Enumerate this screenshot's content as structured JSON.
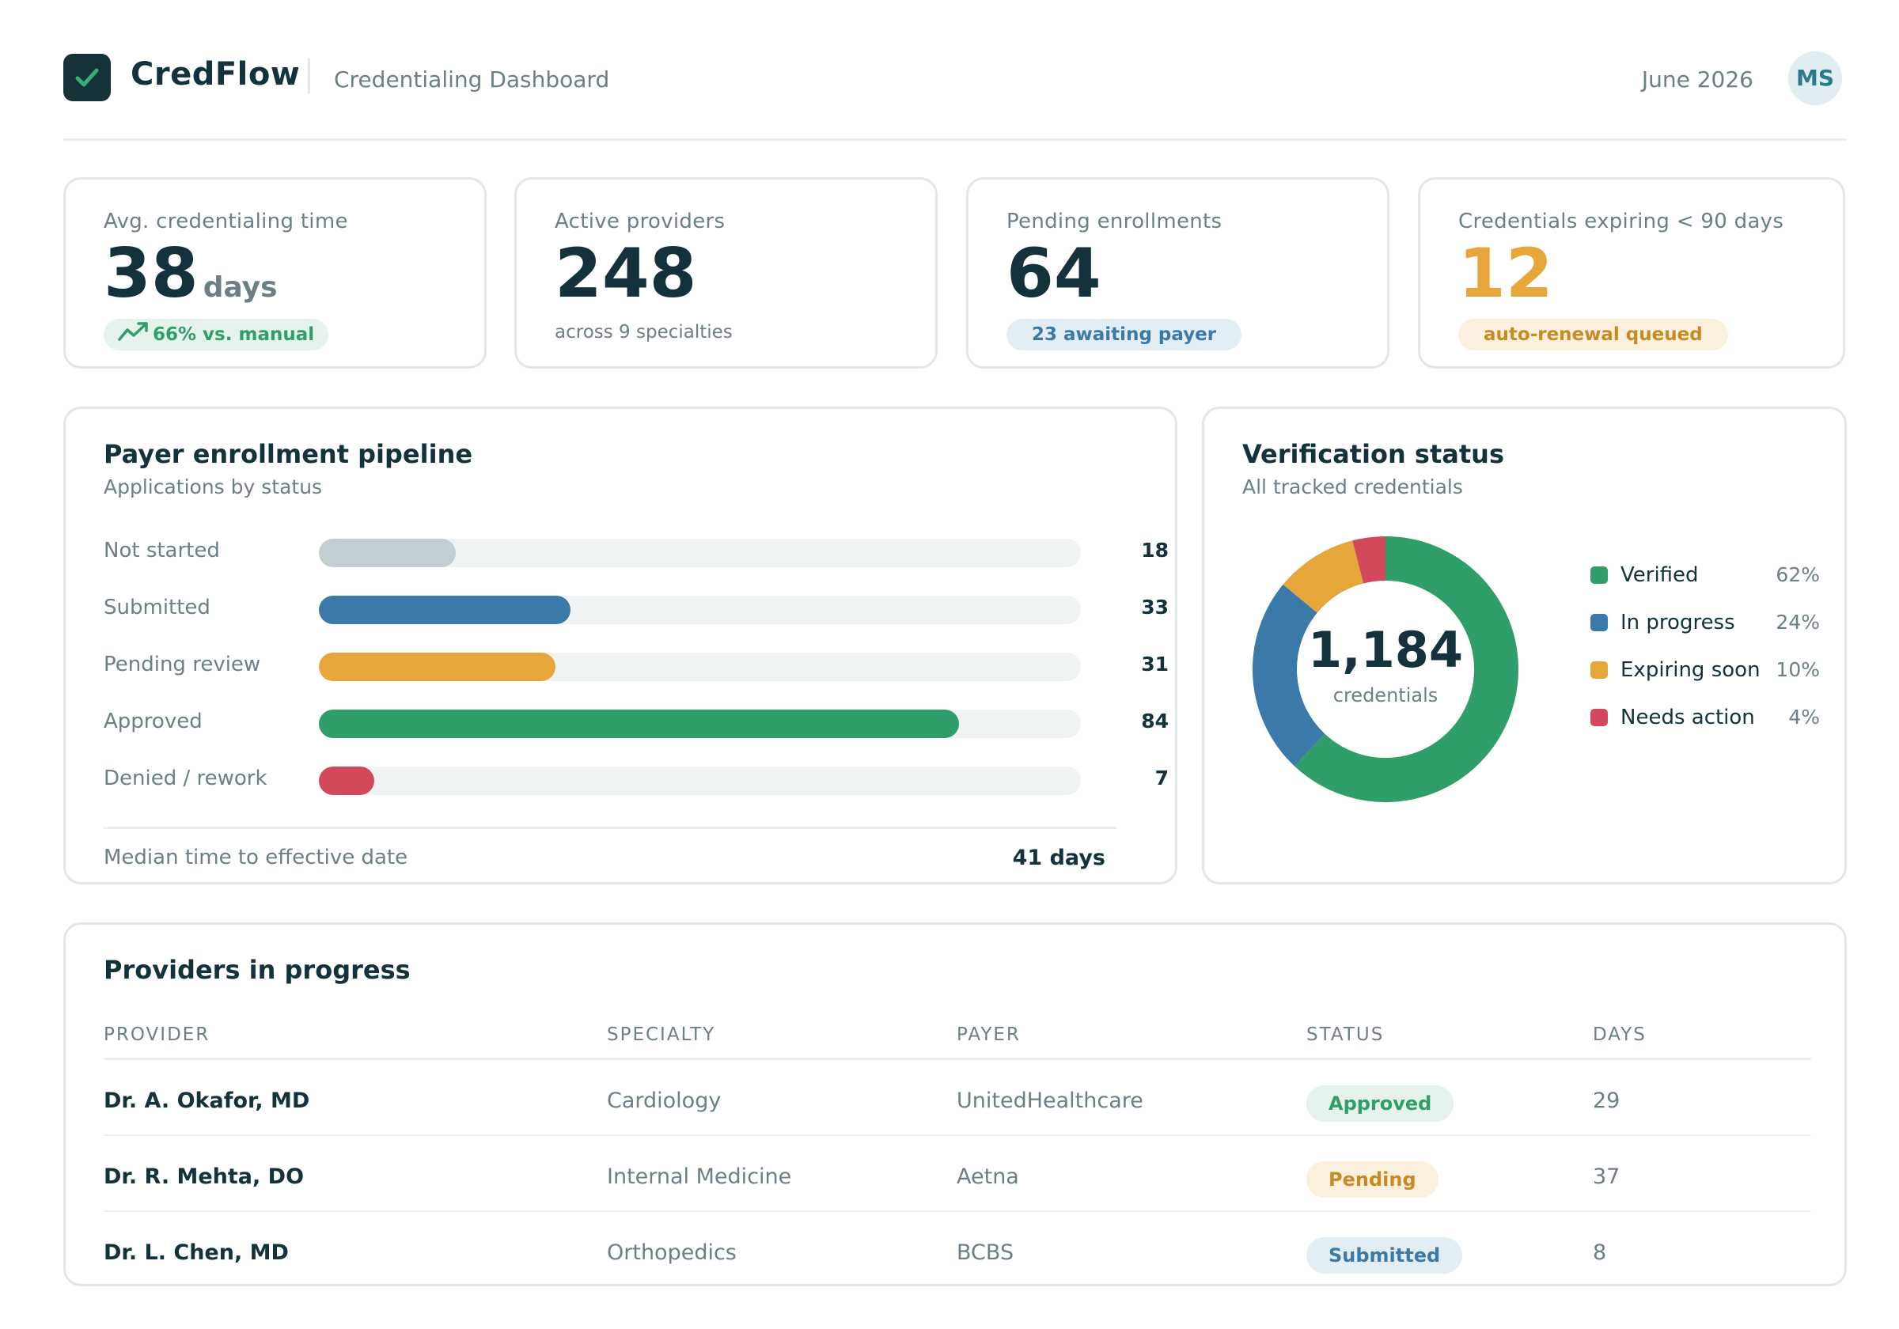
{
  "header": {
    "brand": "CredFlow",
    "subtitle": "Credentialing Dashboard",
    "period": "June 2026",
    "user_initials": "MS"
  },
  "kpis": {
    "avg_time": {
      "label": "Avg. credentialing time",
      "value": "38",
      "unit": "days",
      "badge": "66% vs. manual"
    },
    "active_providers": {
      "label": "Active providers",
      "value": "248",
      "note": "across 9 specialties"
    },
    "pending_enrollments": {
      "label": "Pending enrollments",
      "value": "64",
      "badge": "23 awaiting payer"
    },
    "expiring": {
      "label": "Credentials expiring < 90 days",
      "value": "12",
      "badge": "auto-renewal queued"
    }
  },
  "pipeline": {
    "title": "Payer enrollment pipeline",
    "subtitle": "Applications by status",
    "max": 100,
    "rows": [
      {
        "label": "Not started",
        "value": 18,
        "display": "18",
        "color": "#c3ced3"
      },
      {
        "label": "Submitted",
        "value": 33,
        "display": "33",
        "color": "#3a79a8"
      },
      {
        "label": "Pending review",
        "value": 31,
        "display": "31",
        "color": "#e6a63a"
      },
      {
        "label": "Approved",
        "value": 84,
        "display": "84",
        "color": "#2f9e68"
      },
      {
        "label": "Denied / rework",
        "value": 7,
        "display": "7",
        "color": "#d2495c"
      }
    ],
    "footer_label": "Median time to effective date",
    "footer_value": "41 days"
  },
  "verification": {
    "title": "Verification status",
    "subtitle": "All tracked credentials",
    "total": "1,184",
    "total_caption": "credentials",
    "segments": [
      {
        "label": "Verified",
        "pct_label": "62%",
        "pct": 62,
        "color": "#2f9e68"
      },
      {
        "label": "In progress",
        "pct_label": "24%",
        "pct": 24,
        "color": "#3a79a8"
      },
      {
        "label": "Expiring soon",
        "pct_label": "10%",
        "pct": 10,
        "color": "#e6a63a"
      },
      {
        "label": "Needs action",
        "pct_label": "4%",
        "pct": 4,
        "color": "#d2495c"
      }
    ]
  },
  "providers_table": {
    "title": "Providers in progress",
    "columns": [
      "PROVIDER",
      "SPECIALTY",
      "PAYER",
      "STATUS",
      "DAYS"
    ],
    "rows": [
      {
        "provider": "Dr. A. Okafor, MD",
        "specialty": "Cardiology",
        "payer": "UnitedHealthcare",
        "status": "Approved",
        "days": "29"
      },
      {
        "provider": "Dr. R. Mehta, DO",
        "specialty": "Internal Medicine",
        "payer": "Aetna",
        "status": "Pending",
        "days": "37"
      },
      {
        "provider": "Dr. L. Chen, MD",
        "specialty": "Orthopedics",
        "payer": "BCBS",
        "status": "Submitted",
        "days": "8"
      }
    ]
  },
  "colors": {
    "brand_dark": "#163239",
    "accent_green": "#2f9e68",
    "accent_blue": "#3a79a8",
    "accent_amber": "#e6a63a",
    "accent_red": "#d2495c"
  },
  "icons": {
    "logo": "check-icon",
    "trend": "trend-up-icon"
  }
}
